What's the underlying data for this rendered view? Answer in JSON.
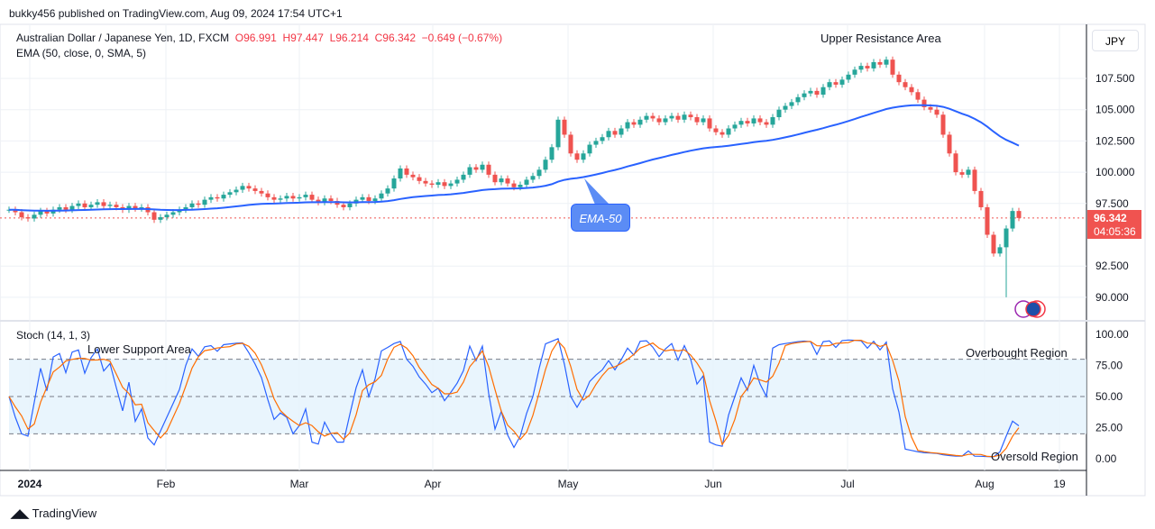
{
  "header": {
    "published": "bukky456 published on TradingView.com, Aug 09, 2024 17:54 UTC+1"
  },
  "legend": {
    "symbol": "Australian Dollar / Japanese Yen, 1D, FXCM",
    "open": "O96.991",
    "high": "H97.447",
    "low": "L96.214",
    "close": "C96.342",
    "change": "−0.649 (−0.67%)"
  },
  "indicators": {
    "ema": "EMA (50, close, 0, SMA, 5)",
    "stoch": "Stoch (14, 1, 3)"
  },
  "currency": "JPY",
  "current_price": {
    "price": "96.342",
    "countdown": "04:05:36"
  },
  "annotations": {
    "upper": "Upper Resistance Area",
    "lower": "Lower Support Area",
    "overbought": "Overbought Region",
    "oversold": "Oversold Region",
    "ema_callout": "EMA-50"
  },
  "footer": {
    "brand": "TradingView"
  },
  "colors": {
    "up": "#26a69a",
    "down": "#ef5350",
    "ema": "#2962ff",
    "stoch_k": "#2962ff",
    "stoch_d": "#ff6d00",
    "band": "#e3f2fd"
  },
  "chart_data": [
    {
      "type": "candlestick",
      "title": "Australian Dollar / Japanese Yen, 1D, FXCM",
      "price_ticks": [
        "107.500",
        "105.000",
        "102.500",
        "100.000",
        "97.500",
        "92.500",
        "90.000"
      ],
      "ylim": [
        88.5,
        110.5
      ],
      "time_ticks": [
        "2024",
        "Feb",
        "Mar",
        "Apr",
        "May",
        "Jun",
        "Jul",
        "Aug",
        "19"
      ],
      "last_low": 90.0,
      "closes": [
        97.0,
        96.8,
        96.4,
        96.3,
        96.6,
        96.9,
        96.7,
        97.0,
        97.2,
        97.0,
        97.3,
        97.5,
        97.2,
        97.4,
        97.6,
        97.3,
        97.4,
        97.2,
        97.0,
        97.3,
        97.1,
        97.2,
        96.8,
        96.2,
        96.4,
        96.6,
        96.8,
        97.0,
        97.2,
        97.5,
        97.4,
        97.8,
        98.0,
        97.9,
        98.2,
        98.4,
        98.6,
        98.9,
        98.7,
        98.5,
        98.3,
        98.0,
        97.8,
        97.9,
        98.1,
        97.9,
        98.0,
        98.2,
        97.8,
        97.6,
        97.9,
        97.7,
        97.4,
        97.2,
        97.5,
        97.8,
        98.0,
        97.7,
        97.9,
        98.3,
        98.7,
        99.5,
        100.3,
        99.8,
        99.6,
        99.3,
        99.1,
        99.0,
        99.2,
        98.9,
        99.1,
        99.4,
        99.8,
        100.4,
        100.2,
        100.6,
        99.8,
        99.2,
        99.5,
        99.1,
        98.8,
        99.0,
        99.4,
        99.7,
        100.2,
        101.0,
        102.0,
        104.2,
        103.0,
        101.5,
        101.0,
        101.5,
        102.2,
        102.5,
        102.8,
        103.3,
        103.0,
        103.5,
        104.0,
        103.8,
        104.2,
        104.5,
        104.3,
        104.0,
        104.3,
        104.5,
        104.2,
        104.6,
        104.4,
        104.0,
        104.3,
        103.5,
        103.2,
        103.0,
        103.5,
        103.8,
        104.1,
        103.9,
        104.3,
        104.0,
        103.8,
        104.4,
        105.0,
        105.3,
        105.6,
        106.0,
        106.3,
        106.5,
        106.2,
        106.8,
        107.2,
        107.0,
        107.4,
        107.8,
        108.2,
        108.5,
        108.3,
        108.8,
        108.6,
        109.0,
        107.8,
        107.2,
        106.8,
        106.4,
        105.8,
        105.2,
        105.0,
        104.6,
        103.0,
        101.5,
        100.0,
        99.8,
        100.2,
        98.5,
        97.2,
        95.0,
        93.5,
        94.0,
        95.5,
        96.9,
        96.342
      ],
      "overlay": {
        "name": "EMA (50, close, 0, SMA, 5)"
      }
    },
    {
      "type": "line",
      "title": "Stoch (14, 1, 3)",
      "y_ticks": [
        "100.00",
        "75.00",
        "50.00",
        "25.00",
        "0.00"
      ],
      "ylim": [
        0,
        100
      ],
      "bands": {
        "upper": 80,
        "middle": 50,
        "lower": 20
      }
    }
  ]
}
